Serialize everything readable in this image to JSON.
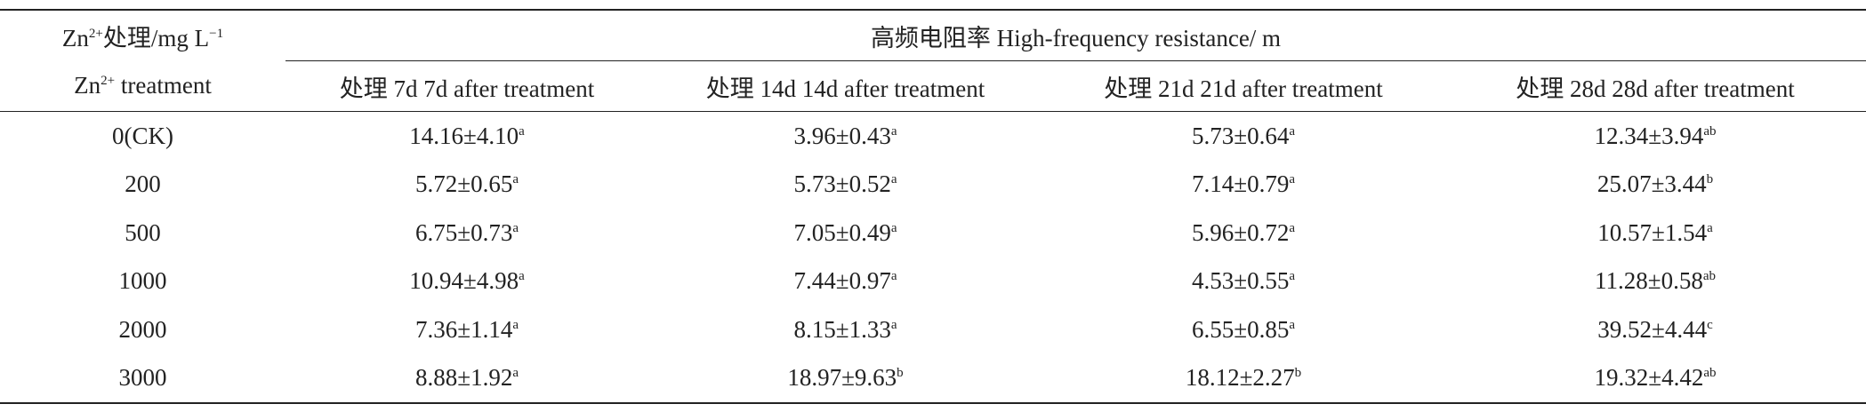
{
  "table": {
    "header": {
      "row_label": [
        [
          {
            "text": "Zn"
          },
          {
            "sup": "2+"
          },
          {
            "text": "处理/mg L"
          },
          {
            "sup": "−1"
          }
        ],
        [
          {
            "text": "Zn"
          },
          {
            "sup": "2+"
          },
          {
            "text": " treatment"
          }
        ]
      ],
      "group": "高频电阻率 High-frequency resistance/ m",
      "columns": [
        "处理 7d 7d after treatment",
        "处理 14d 14d after treatment",
        "处理 21d 21d after treatment",
        "处理 28d 28d after treatment"
      ]
    },
    "rows": [
      {
        "label": "0(CK)",
        "cells": [
          {
            "value": "14.16±4.10",
            "sig": "a"
          },
          {
            "value": "3.96±0.43",
            "sig": "a"
          },
          {
            "value": "5.73±0.64",
            "sig": "a"
          },
          {
            "value": "12.34±3.94",
            "sig": "ab"
          }
        ]
      },
      {
        "label": "200",
        "cells": [
          {
            "value": "5.72±0.65",
            "sig": "a"
          },
          {
            "value": "5.73±0.52",
            "sig": "a"
          },
          {
            "value": "7.14±0.79",
            "sig": "a"
          },
          {
            "value": "25.07±3.44",
            "sig": "b"
          }
        ]
      },
      {
        "label": "500",
        "cells": [
          {
            "value": "6.75±0.73",
            "sig": "a"
          },
          {
            "value": "7.05±0.49",
            "sig": "a"
          },
          {
            "value": "5.96±0.72",
            "sig": "a"
          },
          {
            "value": "10.57±1.54",
            "sig": "a"
          }
        ]
      },
      {
        "label": "1000",
        "cells": [
          {
            "value": "10.94±4.98",
            "sig": "a"
          },
          {
            "value": "7.44±0.97",
            "sig": "a"
          },
          {
            "value": "4.53±0.55",
            "sig": "a"
          },
          {
            "value": "11.28±0.58",
            "sig": "ab"
          }
        ]
      },
      {
        "label": "2000",
        "cells": [
          {
            "value": "7.36±1.14",
            "sig": "a"
          },
          {
            "value": "8.15±1.33",
            "sig": "a"
          },
          {
            "value": "6.55±0.85",
            "sig": "a"
          },
          {
            "value": "39.52±4.44",
            "sig": "c"
          }
        ]
      },
      {
        "label": "3000",
        "cells": [
          {
            "value": "8.88±1.92",
            "sig": "a"
          },
          {
            "value": "18.97±9.63",
            "sig": "b"
          },
          {
            "value": "18.12±2.27",
            "sig": "b"
          },
          {
            "value": "19.32±4.42",
            "sig": "ab"
          }
        ]
      }
    ]
  }
}
